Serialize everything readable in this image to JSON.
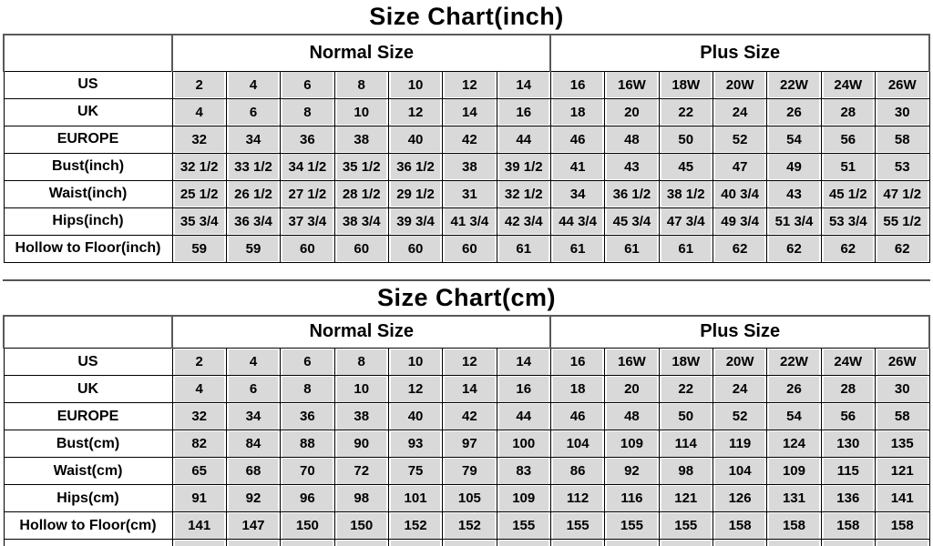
{
  "colors": {
    "cell_background": "#d9d9d9",
    "grid_line": "#000000",
    "header_grid_line": "#595959",
    "text": "#000000",
    "page_background": "#ffffff"
  },
  "tables": [
    {
      "title": "Size Chart(inch)",
      "groups": [
        "Normal Size",
        "Plus Size"
      ],
      "rows": [
        {
          "label": "US",
          "values": [
            "2",
            "4",
            "6",
            "8",
            "10",
            "12",
            "14",
            "16",
            "16W",
            "18W",
            "20W",
            "22W",
            "24W",
            "26W"
          ]
        },
        {
          "label": "UK",
          "values": [
            "4",
            "6",
            "8",
            "10",
            "12",
            "14",
            "16",
            "18",
            "20",
            "22",
            "24",
            "26",
            "28",
            "30"
          ]
        },
        {
          "label": "EUROPE",
          "values": [
            "32",
            "34",
            "36",
            "38",
            "40",
            "42",
            "44",
            "46",
            "48",
            "50",
            "52",
            "54",
            "56",
            "58"
          ]
        },
        {
          "label": "Bust(inch)",
          "values": [
            "32 1/2",
            "33 1/2",
            "34 1/2",
            "35 1/2",
            "36 1/2",
            "38",
            "39 1/2",
            "41",
            "43",
            "45",
            "47",
            "49",
            "51",
            "53"
          ]
        },
        {
          "label": "Waist(inch)",
          "values": [
            "25 1/2",
            "26 1/2",
            "27 1/2",
            "28 1/2",
            "29 1/2",
            "31",
            "32 1/2",
            "34",
            "36 1/2",
            "38 1/2",
            "40 3/4",
            "43",
            "45 1/2",
            "47 1/2"
          ]
        },
        {
          "label": "Hips(inch)",
          "values": [
            "35 3/4",
            "36 3/4",
            "37 3/4",
            "38 3/4",
            "39 3/4",
            "41 3/4",
            "42 3/4",
            "44 3/4",
            "45 3/4",
            "47 3/4",
            "49 3/4",
            "51 3/4",
            "53 3/4",
            "55 1/2"
          ]
        },
        {
          "label": "Hollow to Floor(inch)",
          "values": [
            "59",
            "59",
            "60",
            "60",
            "60",
            "60",
            "61",
            "61",
            "61",
            "61",
            "62",
            "62",
            "62",
            "62"
          ]
        }
      ]
    },
    {
      "title": "Size Chart(cm)",
      "groups": [
        "Normal Size",
        "Plus Size"
      ],
      "rows": [
        {
          "label": "US",
          "values": [
            "2",
            "4",
            "6",
            "8",
            "10",
            "12",
            "14",
            "16",
            "16W",
            "18W",
            "20W",
            "22W",
            "24W",
            "26W"
          ]
        },
        {
          "label": "UK",
          "values": [
            "4",
            "6",
            "8",
            "10",
            "12",
            "14",
            "16",
            "18",
            "20",
            "22",
            "24",
            "26",
            "28",
            "30"
          ]
        },
        {
          "label": "EUROPE",
          "values": [
            "32",
            "34",
            "36",
            "38",
            "40",
            "42",
            "44",
            "46",
            "48",
            "50",
            "52",
            "54",
            "56",
            "58"
          ]
        },
        {
          "label": "Bust(cm)",
          "values": [
            "82",
            "84",
            "88",
            "90",
            "93",
            "97",
            "100",
            "104",
            "109",
            "114",
            "119",
            "124",
            "130",
            "135"
          ]
        },
        {
          "label": "Waist(cm)",
          "values": [
            "65",
            "68",
            "70",
            "72",
            "75",
            "79",
            "83",
            "86",
            "92",
            "98",
            "104",
            "109",
            "115",
            "121"
          ]
        },
        {
          "label": "Hips(cm)",
          "values": [
            "91",
            "92",
            "96",
            "98",
            "101",
            "105",
            "109",
            "112",
            "116",
            "121",
            "126",
            "131",
            "136",
            "141"
          ]
        },
        {
          "label": "Hollow to Floor(cm)",
          "values": [
            "141",
            "147",
            "150",
            "150",
            "152",
            "152",
            "155",
            "155",
            "155",
            "155",
            "158",
            "158",
            "158",
            "158"
          ]
        }
      ]
    }
  ]
}
